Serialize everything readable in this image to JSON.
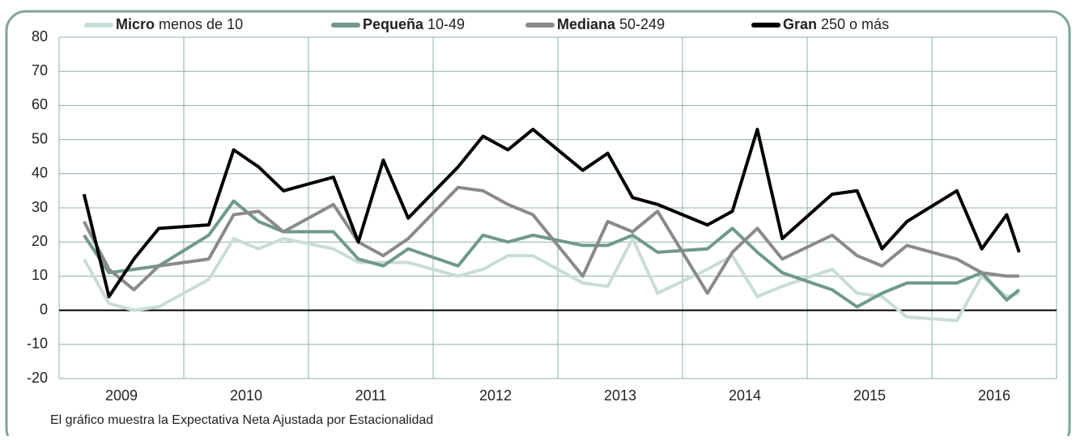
{
  "chart_data": {
    "type": "line",
    "footnote": "El gráfico muestra la Expectativa Neta Ajustada por Estacionalidad",
    "x": [
      2009.2,
      2009.4,
      2009.6,
      2009.8,
      2010.2,
      2010.4,
      2010.6,
      2010.8,
      2011.2,
      2011.4,
      2011.6,
      2011.8,
      2012.2,
      2012.4,
      2012.6,
      2012.8,
      2013.2,
      2013.4,
      2013.6,
      2013.8,
      2014.2,
      2014.4,
      2014.6,
      2014.8,
      2015.2,
      2015.4,
      2015.6,
      2015.8,
      2016.2,
      2016.4,
      2016.6,
      2016.7
    ],
    "series": [
      {
        "name": "Micro",
        "range": "menos de 10",
        "color": "#c9ddd4",
        "values": [
          15,
          2,
          0,
          1,
          9,
          21,
          18,
          21,
          18,
          14,
          14,
          14,
          10,
          12,
          16,
          16,
          8,
          7,
          21,
          5,
          12,
          16,
          4,
          7,
          12,
          5,
          4,
          -2,
          -3,
          10,
          4,
          5
        ]
      },
      {
        "name": "Pequeña",
        "range": "10-49",
        "color": "#6f9a88",
        "values": [
          22,
          11,
          12,
          13,
          22,
          32,
          26,
          23,
          23,
          15,
          13,
          18,
          13,
          22,
          20,
          22,
          19,
          19,
          22,
          17,
          18,
          24,
          17,
          11,
          6,
          1,
          5,
          8,
          8,
          11,
          3,
          6
        ]
      },
      {
        "name": "Mediana",
        "range": "50-249",
        "color": "#8a8a8a",
        "values": [
          26,
          12,
          6,
          13,
          15,
          28,
          29,
          23,
          31,
          20,
          16,
          21,
          36,
          35,
          31,
          28,
          10,
          26,
          23,
          29,
          5,
          17,
          24,
          15,
          22,
          16,
          13,
          19,
          15,
          11,
          10,
          10
        ]
      },
      {
        "name": "Gran",
        "range": "250 o más",
        "color": "#000000",
        "values": [
          34,
          4,
          15,
          24,
          25,
          47,
          42,
          35,
          39,
          20,
          44,
          27,
          42,
          51,
          47,
          53,
          41,
          46,
          33,
          31,
          25,
          29,
          53,
          21,
          34,
          35,
          18,
          26,
          35,
          18,
          28,
          17
        ]
      }
    ],
    "xlim": [
      2009,
      2017
    ],
    "xticks": [
      {
        "value": 2009.5,
        "label": "2009"
      },
      {
        "value": 2010.5,
        "label": "2010"
      },
      {
        "value": 2011.5,
        "label": "2011"
      },
      {
        "value": 2012.5,
        "label": "2012"
      },
      {
        "value": 2013.5,
        "label": "2013"
      },
      {
        "value": 2014.5,
        "label": "2014"
      },
      {
        "value": 2015.5,
        "label": "2015"
      },
      {
        "value": 2016.5,
        "label": "2016"
      }
    ],
    "ylim": [
      -20,
      80
    ],
    "yticks": [
      -20,
      -10,
      0,
      10,
      20,
      30,
      40,
      50,
      60,
      70,
      80
    ],
    "grid": true
  }
}
